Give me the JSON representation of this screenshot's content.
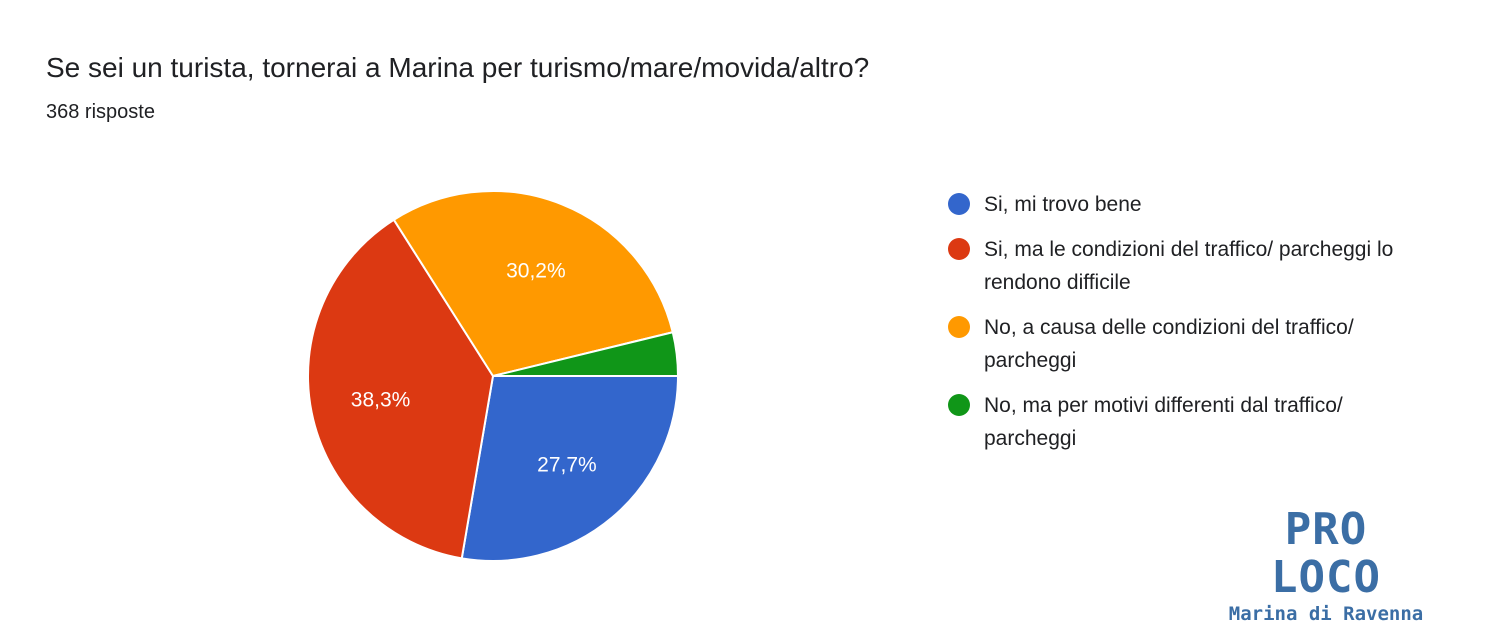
{
  "header": {
    "title": "Se sei un turista, tornerai a Marina per turismo/mare/movida/altro?",
    "subtitle": "368 risposte"
  },
  "chart_data": {
    "type": "pie",
    "title": "Se sei un turista, tornerai a Marina per turismo/mare/movida/altro?",
    "categories": [
      "Si, mi trovo bene",
      "Si, ma le condizioni del traffico/ parcheggi lo rendono difficile",
      "No, a causa delle condizioni del traffico/ parcheggi",
      "No, ma per motivi differenti dal traffico/ parcheggi"
    ],
    "values": [
      27.7,
      38.3,
      30.2,
      3.8
    ],
    "data_labels": [
      "27,7%",
      "38,3%",
      "30,2%",
      ""
    ],
    "colors": [
      "#3366cc",
      "#dc3912",
      "#ff9900",
      "#109618"
    ],
    "legend_position": "right"
  },
  "legend": {
    "items": [
      {
        "label": "Si, mi trovo bene",
        "color": "#3366cc"
      },
      {
        "label": "Si, ma le condizioni del traffico/ parcheggi lo rendono difficile",
        "color": "#dc3912"
      },
      {
        "label": "No, a causa delle condizioni del traffico/ parcheggi",
        "color": "#ff9900"
      },
      {
        "label": "No, ma per motivi differenti dal traffico/ parcheggi",
        "color": "#109618"
      }
    ]
  },
  "logo": {
    "main": "PRO LOCO",
    "sub": "Marina di Ravenna"
  }
}
